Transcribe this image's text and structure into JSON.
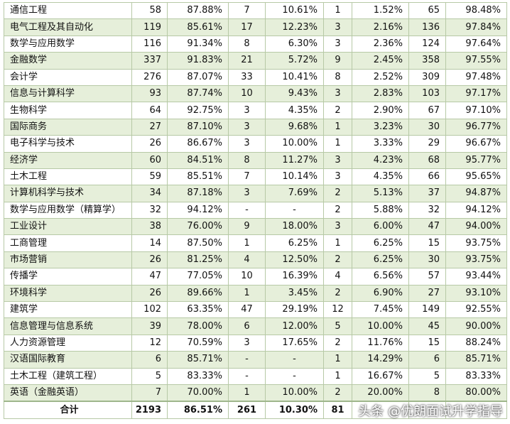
{
  "columns": [
    "name",
    "c1",
    "p1",
    "c2",
    "p2",
    "c3",
    "p3",
    "c4",
    "p4"
  ],
  "rows": [
    {
      "name": "通信工程",
      "c1": "58",
      "p1": "87.88%",
      "c2": "7",
      "p2": "10.61%",
      "c3": "1",
      "p3": "1.52%",
      "c4": "65",
      "p4": "98.48%"
    },
    {
      "name": "电气工程及其自动化",
      "c1": "119",
      "p1": "85.61%",
      "c2": "17",
      "p2": "12.23%",
      "c3": "3",
      "p3": "2.16%",
      "c4": "136",
      "p4": "97.84%"
    },
    {
      "name": "数学与应用数学",
      "c1": "116",
      "p1": "91.34%",
      "c2": "8",
      "p2": "6.30%",
      "c3": "3",
      "p3": "2.36%",
      "c4": "124",
      "p4": "97.64%"
    },
    {
      "name": "金融数学",
      "c1": "337",
      "p1": "91.83%",
      "c2": "21",
      "p2": "5.72%",
      "c3": "9",
      "p3": "2.45%",
      "c4": "358",
      "p4": "97.55%"
    },
    {
      "name": "会计学",
      "c1": "276",
      "p1": "87.07%",
      "c2": "33",
      "p2": "10.41%",
      "c3": "8",
      "p3": "2.52%",
      "c4": "309",
      "p4": "97.48%"
    },
    {
      "name": "信息与计算科学",
      "c1": "93",
      "p1": "87.74%",
      "c2": "10",
      "p2": "9.43%",
      "c3": "3",
      "p3": "2.83%",
      "c4": "103",
      "p4": "97.17%"
    },
    {
      "name": "生物科学",
      "c1": "64",
      "p1": "92.75%",
      "c2": "3",
      "p2": "4.35%",
      "c3": "2",
      "p3": "2.90%",
      "c4": "67",
      "p4": "97.10%"
    },
    {
      "name": "国际商务",
      "c1": "27",
      "p1": "87.10%",
      "c2": "3",
      "p2": "9.68%",
      "c3": "1",
      "p3": "3.23%",
      "c4": "30",
      "p4": "96.77%"
    },
    {
      "name": "电子科学与技术",
      "c1": "26",
      "p1": "86.67%",
      "c2": "3",
      "p2": "10.00%",
      "c3": "1",
      "p3": "3.33%",
      "c4": "29",
      "p4": "96.67%"
    },
    {
      "name": "经济学",
      "c1": "60",
      "p1": "84.51%",
      "c2": "8",
      "p2": "11.27%",
      "c3": "3",
      "p3": "4.23%",
      "c4": "68",
      "p4": "95.77%"
    },
    {
      "name": "土木工程",
      "c1": "59",
      "p1": "85.51%",
      "c2": "7",
      "p2": "10.14%",
      "c3": "3",
      "p3": "4.35%",
      "c4": "66",
      "p4": "95.65%"
    },
    {
      "name": "计算机科学与技术",
      "c1": "34",
      "p1": "87.18%",
      "c2": "3",
      "p2": "7.69%",
      "c3": "2",
      "p3": "5.13%",
      "c4": "37",
      "p4": "94.87%"
    },
    {
      "name": "数学与应用数学（精算学）",
      "c1": "32",
      "p1": "94.12%",
      "c2": "-",
      "p2": "-",
      "c3": "2",
      "p3": "5.88%",
      "c4": "32",
      "p4": "94.12%"
    },
    {
      "name": "工业设计",
      "c1": "38",
      "p1": "76.00%",
      "c2": "9",
      "p2": "18.00%",
      "c3": "3",
      "p3": "6.00%",
      "c4": "47",
      "p4": "94.00%"
    },
    {
      "name": "工商管理",
      "c1": "14",
      "p1": "87.50%",
      "c2": "1",
      "p2": "6.25%",
      "c3": "1",
      "p3": "6.25%",
      "c4": "15",
      "p4": "93.75%"
    },
    {
      "name": "市场营销",
      "c1": "26",
      "p1": "81.25%",
      "c2": "4",
      "p2": "12.50%",
      "c3": "2",
      "p3": "6.25%",
      "c4": "30",
      "p4": "93.75%"
    },
    {
      "name": "传播学",
      "c1": "47",
      "p1": "77.05%",
      "c2": "10",
      "p2": "16.39%",
      "c3": "4",
      "p3": "6.56%",
      "c4": "57",
      "p4": "93.44%"
    },
    {
      "name": "环境科学",
      "c1": "26",
      "p1": "89.66%",
      "c2": "1",
      "p2": "3.45%",
      "c3": "2",
      "p3": "6.90%",
      "c4": "27",
      "p4": "93.10%"
    },
    {
      "name": "建筑学",
      "c1": "102",
      "p1": "63.35%",
      "c2": "47",
      "p2": "29.19%",
      "c3": "12",
      "p3": "7.45%",
      "c4": "149",
      "p4": "92.55%"
    },
    {
      "name": "信息管理与信息系统",
      "c1": "39",
      "p1": "78.00%",
      "c2": "6",
      "p2": "12.00%",
      "c3": "5",
      "p3": "10.00%",
      "c4": "45",
      "p4": "90.00%"
    },
    {
      "name": "人力资源管理",
      "c1": "12",
      "p1": "70.59%",
      "c2": "3",
      "p2": "17.65%",
      "c3": "2",
      "p3": "11.76%",
      "c4": "15",
      "p4": "88.24%"
    },
    {
      "name": "汉语国际教育",
      "c1": "6",
      "p1": "85.71%",
      "c2": "-",
      "p2": "-",
      "c3": "1",
      "p3": "14.29%",
      "c4": "6",
      "p4": "85.71%"
    },
    {
      "name": "土木工程（建筑工程）",
      "c1": "5",
      "p1": "83.33%",
      "c2": "-",
      "p2": "-",
      "c3": "1",
      "p3": "16.67%",
      "c4": "5",
      "p4": "83.33%"
    },
    {
      "name": "英语（金融英语）",
      "c1": "7",
      "p1": "70.00%",
      "c2": "1",
      "p2": "10.00%",
      "c3": "2",
      "p3": "20.00%",
      "c4": "8",
      "p4": "80.00%"
    }
  ],
  "total": {
    "name": "合计",
    "c1": "2193",
    "p1": "86.51%",
    "c2": "261",
    "p2": "10.30%",
    "c3": "81",
    "p3": "",
    "c4": "",
    "p4": ""
  },
  "watermark": "头条 @优朗面试升学指导",
  "colors": {
    "alt_row": "#e6efda",
    "border": "#b7c9a6"
  }
}
